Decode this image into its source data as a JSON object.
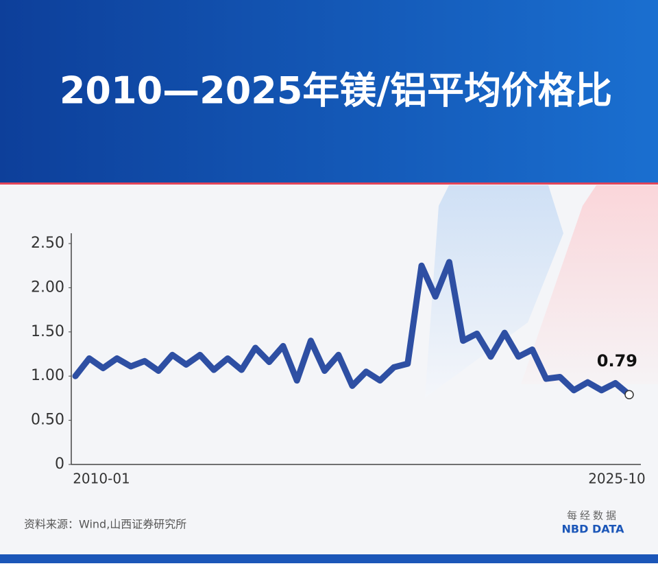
{
  "chart_data": {
    "type": "line",
    "title": "2010—2025年镁/铝平均价格比",
    "categories": [
      "2010-01",
      null,
      null,
      null,
      null,
      null,
      null,
      null,
      null,
      null,
      null,
      null,
      null,
      null,
      null,
      null,
      null,
      null,
      null,
      null,
      null,
      null,
      null,
      null,
      null,
      null,
      null,
      null,
      null,
      null,
      null,
      null,
      null,
      null,
      null,
      null,
      null,
      null,
      null,
      null,
      "2025-10"
    ],
    "series": [
      {
        "color": "#2e4fa3",
        "values": [
          1.0,
          1.2,
          1.09,
          1.2,
          1.11,
          1.17,
          1.06,
          1.24,
          1.13,
          1.24,
          1.07,
          1.2,
          1.07,
          1.32,
          1.16,
          1.34,
          0.95,
          1.4,
          1.06,
          1.24,
          0.89,
          1.05,
          0.95,
          1.1,
          1.14,
          2.25,
          1.9,
          2.29,
          1.4,
          1.48,
          1.22,
          1.49,
          1.22,
          1.3,
          0.97,
          0.99,
          0.84,
          0.93,
          0.84,
          0.92,
          0.79
        ]
      }
    ],
    "ylim": [
      0,
      2.5
    ],
    "yticks": [
      0,
      {
        "value": 0.5,
        "label": "0.50"
      },
      {
        "value": 1,
        "label": "1.00"
      },
      {
        "value": 1.5,
        "label": "1.50"
      },
      {
        "value": 2,
        "label": "2.00"
      },
      {
        "value": 2.5,
        "label": "2.50"
      }
    ],
    "source": "资料来源：Wind,山西证券研究所",
    "logo_cn": "每经数据",
    "logo_en": "NBD DATA"
  }
}
